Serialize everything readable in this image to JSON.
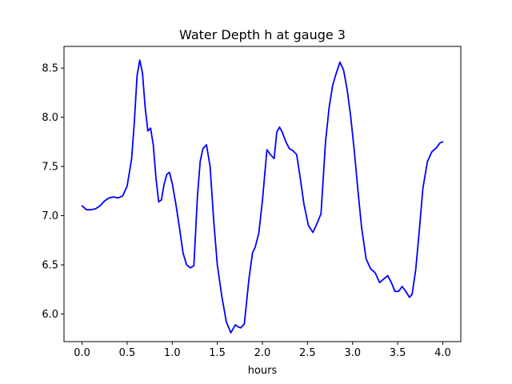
{
  "chart_data": {
    "type": "line",
    "title": "Water Depth h at gauge 3",
    "xlabel": "hours",
    "ylabel": "",
    "xlim": [
      -0.2,
      4.2
    ],
    "ylim": [
      5.72,
      8.72
    ],
    "xticks": [
      "0.0",
      "0.5",
      "1.0",
      "1.5",
      "2.0",
      "2.5",
      "3.0",
      "3.5",
      "4.0"
    ],
    "yticks": [
      "6.0",
      "6.5",
      "7.0",
      "7.5",
      "8.0",
      "8.5"
    ],
    "grid": false,
    "series": [
      {
        "color": "#0000ff",
        "x": [
          0.0,
          0.05,
          0.1,
          0.15,
          0.2,
          0.25,
          0.3,
          0.35,
          0.4,
          0.45,
          0.5,
          0.55,
          0.58,
          0.61,
          0.64,
          0.67,
          0.7,
          0.73,
          0.76,
          0.79,
          0.82,
          0.85,
          0.88,
          0.91,
          0.94,
          0.97,
          1.0,
          1.04,
          1.08,
          1.12,
          1.16,
          1.2,
          1.24,
          1.28,
          1.31,
          1.34,
          1.38,
          1.42,
          1.46,
          1.5,
          1.55,
          1.6,
          1.65,
          1.7,
          1.73,
          1.76,
          1.8,
          1.85,
          1.89,
          1.92,
          1.96,
          2.0,
          2.05,
          2.09,
          2.13,
          2.16,
          2.19,
          2.22,
          2.26,
          2.3,
          2.34,
          2.38,
          2.42,
          2.46,
          2.51,
          2.56,
          2.61,
          2.65,
          2.7,
          2.74,
          2.78,
          2.82,
          2.86,
          2.9,
          2.94,
          2.98,
          3.02,
          3.06,
          3.1,
          3.15,
          3.2,
          3.25,
          3.3,
          3.35,
          3.39,
          3.43,
          3.47,
          3.51,
          3.55,
          3.59,
          3.63,
          3.66,
          3.7,
          3.74,
          3.78,
          3.83,
          3.88,
          3.93,
          3.97,
          4.0
        ],
        "y": [
          7.1,
          7.06,
          7.06,
          7.07,
          7.1,
          7.15,
          7.18,
          7.19,
          7.18,
          7.2,
          7.3,
          7.58,
          7.95,
          8.42,
          8.58,
          8.45,
          8.1,
          7.86,
          7.89,
          7.72,
          7.38,
          7.14,
          7.16,
          7.32,
          7.42,
          7.44,
          7.33,
          7.12,
          6.88,
          6.62,
          6.5,
          6.47,
          6.49,
          7.2,
          7.55,
          7.68,
          7.72,
          7.5,
          6.95,
          6.5,
          6.18,
          5.92,
          5.81,
          5.89,
          5.87,
          5.86,
          5.9,
          6.35,
          6.62,
          6.68,
          6.82,
          7.15,
          7.67,
          7.62,
          7.58,
          7.85,
          7.9,
          7.85,
          7.75,
          7.68,
          7.66,
          7.62,
          7.38,
          7.12,
          6.9,
          6.83,
          6.93,
          7.02,
          7.75,
          8.1,
          8.33,
          8.45,
          8.56,
          8.48,
          8.28,
          8.0,
          7.65,
          7.25,
          6.88,
          6.56,
          6.46,
          6.42,
          6.32,
          6.36,
          6.39,
          6.32,
          6.23,
          6.23,
          6.28,
          6.23,
          6.17,
          6.2,
          6.45,
          6.85,
          7.28,
          7.55,
          7.65,
          7.69,
          7.74,
          7.75
        ]
      }
    ]
  }
}
